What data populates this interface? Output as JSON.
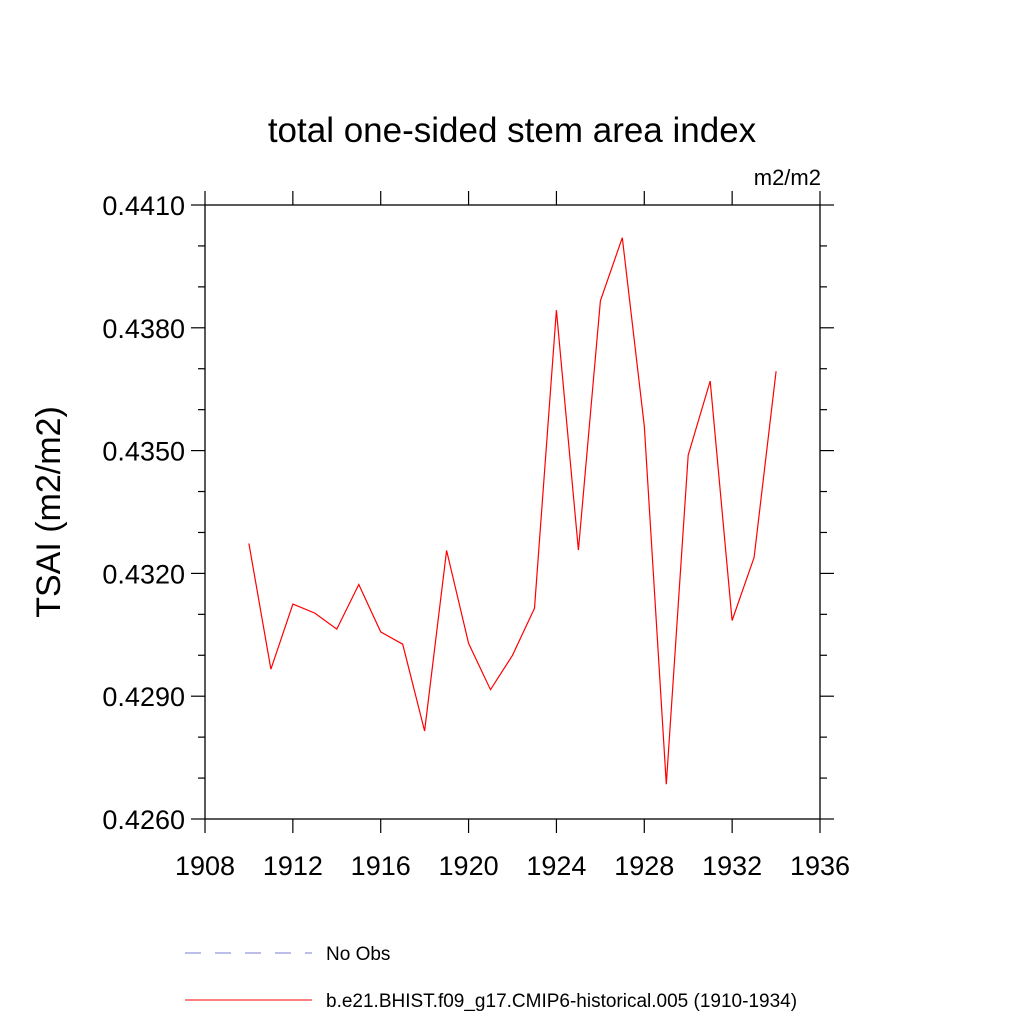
{
  "chart_data": {
    "type": "line",
    "title": "total one-sided stem area index",
    "units_label": "m2/m2",
    "ylabel": "TSAI  (m2/m2)",
    "xlabel": "",
    "xlim": [
      1908,
      1936
    ],
    "ylim": [
      0.426,
      0.441
    ],
    "x_ticks": [
      1908,
      1912,
      1916,
      1920,
      1924,
      1928,
      1932,
      1936
    ],
    "x_tick_labels": [
      "1908",
      "1912",
      "1916",
      "1920",
      "1924",
      "1928",
      "1932",
      "1936"
    ],
    "y_ticks": [
      0.426,
      0.429,
      0.432,
      0.435,
      0.438,
      0.441
    ],
    "y_tick_labels": [
      "0.4260",
      "0.4290",
      "0.4320",
      "0.4350",
      "0.4380",
      "0.4410"
    ],
    "grid": false,
    "legend_placement": "bottom",
    "series": [
      {
        "name": "b.e21.BHIST.f09_g17.CMIP6-historical.005 (1910-1934)",
        "color": "#ff0000",
        "style": "solid",
        "x": [
          1910,
          1911,
          1912,
          1913,
          1914,
          1915,
          1916,
          1917,
          1918,
          1919,
          1920,
          1921,
          1922,
          1923,
          1924,
          1925,
          1926,
          1927,
          1928,
          1929,
          1930,
          1931,
          1932,
          1933,
          1934
        ],
        "y": [
          0.43273,
          0.42966,
          0.43125,
          0.43103,
          0.43064,
          0.43173,
          0.43057,
          0.43027,
          0.42815,
          0.43256,
          0.43029,
          0.42916,
          0.43,
          0.43115,
          0.43843,
          0.43257,
          0.43866,
          0.4402,
          0.4356,
          0.42685,
          0.43489,
          0.4367,
          0.43085,
          0.43239,
          0.43694
        ]
      },
      {
        "name": "No Obs",
        "color": "#7b7bd6",
        "style": "dashed",
        "x": [],
        "y": []
      }
    ]
  }
}
